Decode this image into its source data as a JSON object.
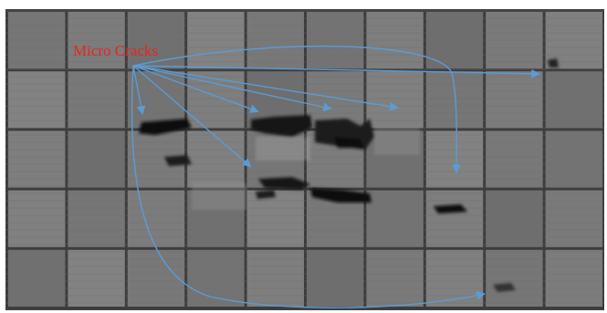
{
  "annotation": {
    "label": "Micro Cracks",
    "label_color": "#e8251f",
    "arrow_color": "#5b9bd5"
  },
  "image": {
    "subject": "electroluminescence-image-of-solar-panel",
    "grid_columns": 10,
    "grid_rows": 5
  }
}
